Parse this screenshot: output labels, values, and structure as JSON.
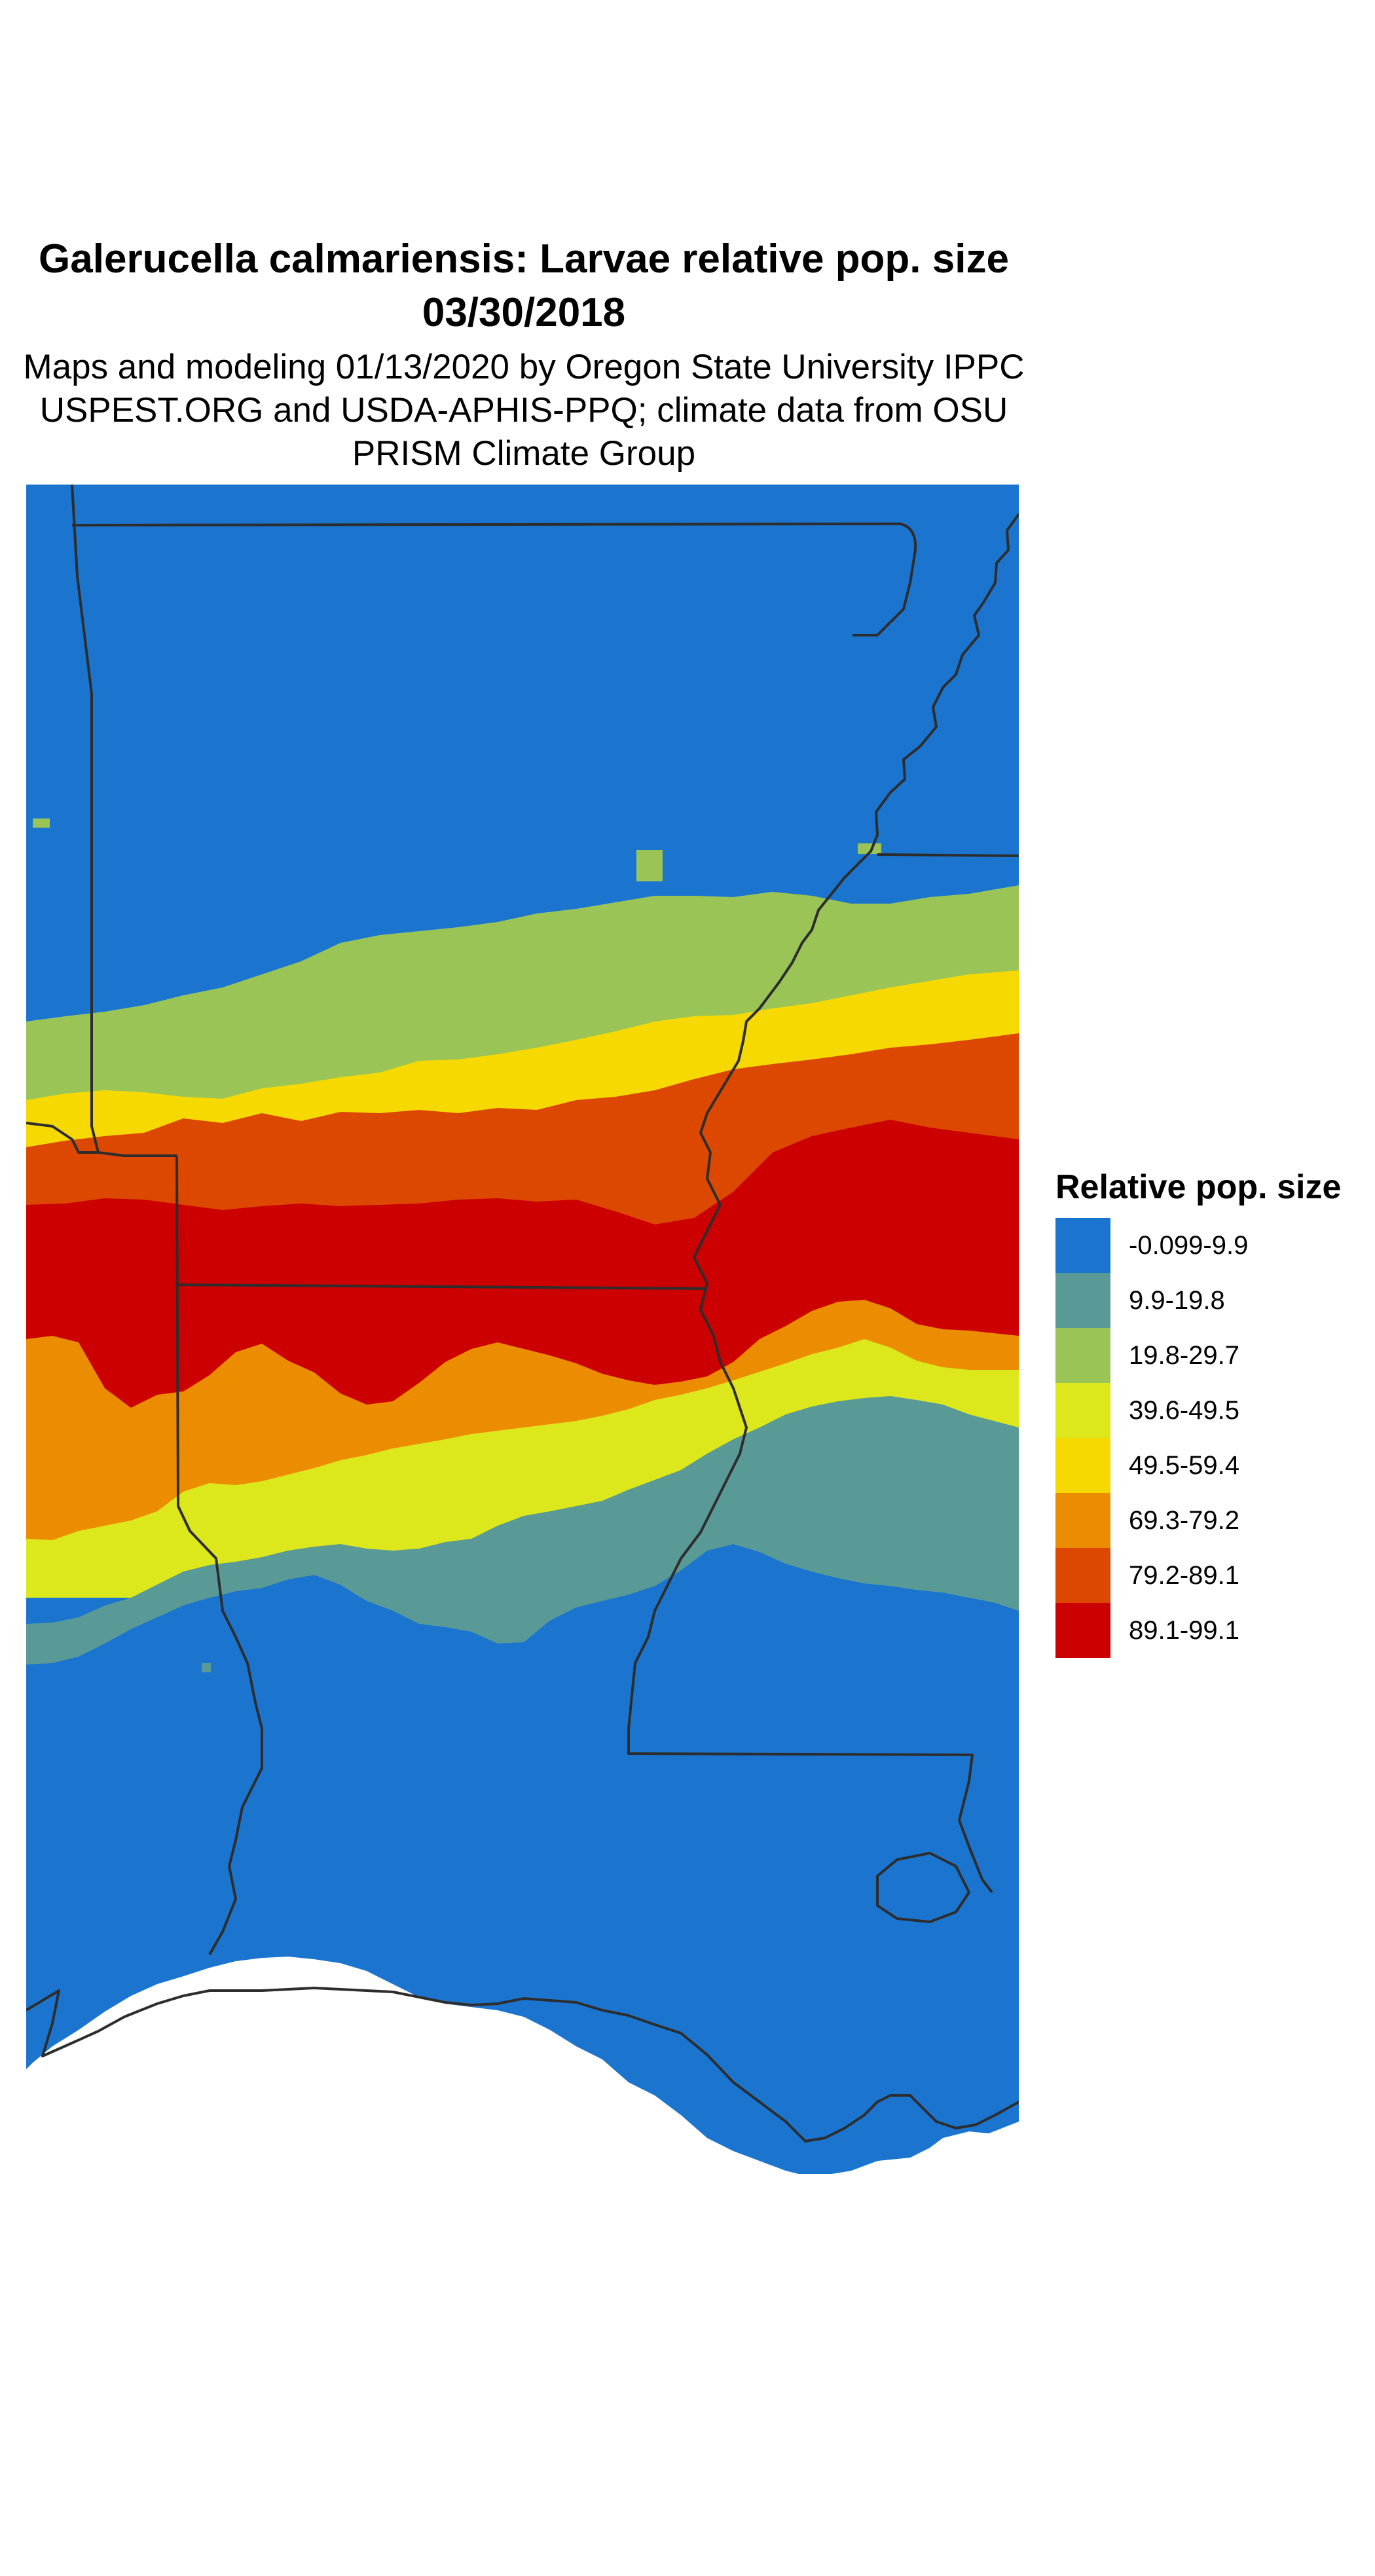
{
  "map": {
    "title": "Galerucella calmariensis: Larvae relative pop. size 03/30/2018",
    "subtitle": "Maps and modeling 01/13/2020 by Oregon State University IPPC USPEST.ORG and USDA-APHIS-PPQ; climate data from OSU PRISM Climate Group",
    "legend": {
      "title": "Relative pop. size",
      "items": [
        {
          "label": "-0.099-9.9",
          "color": "#1b75cf"
        },
        {
          "label": "9.9-19.8",
          "color": "#5a9a96"
        },
        {
          "label": "19.8-29.7",
          "color": "#9bc457"
        },
        {
          "label": "39.6-49.5",
          "color": "#dce81b"
        },
        {
          "label": "49.5-59.4",
          "color": "#f6d900"
        },
        {
          "label": "69.3-79.2",
          "color": "#ec8c00"
        },
        {
          "label": "79.2-89.1",
          "color": "#dc4800"
        },
        {
          "label": "89.1-99.1",
          "color": "#cc0000"
        }
      ]
    },
    "boundary_color": "#2d2d2d"
  }
}
